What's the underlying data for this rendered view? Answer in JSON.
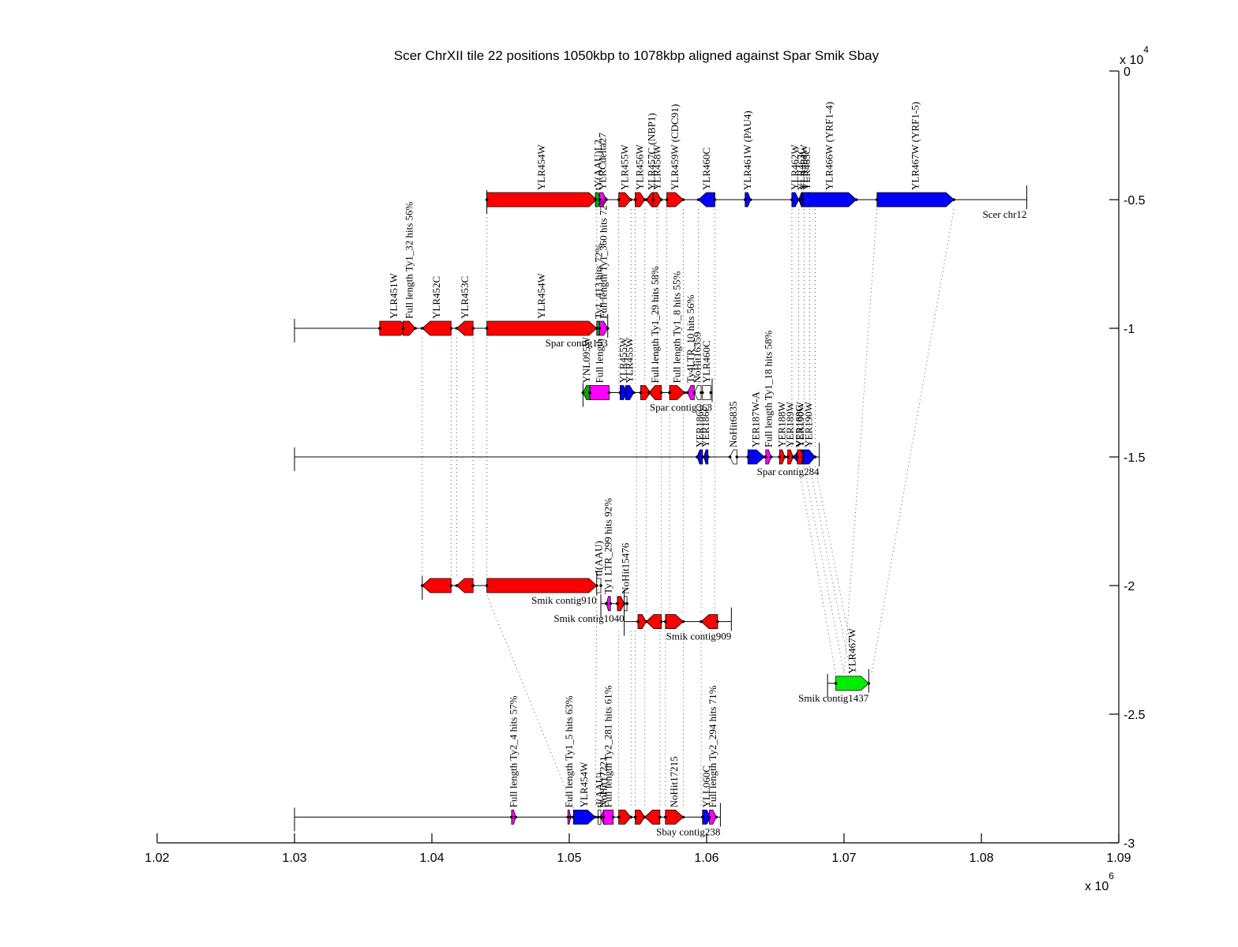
{
  "chart_data": {
    "type": "genome-alignment",
    "title": "Scer ChrXII tile 22 positions 1050kbp to 1078kbp aligned against Spar Smik Sbay",
    "xlabel": "",
    "ylabel": "",
    "xlim": [
      1020000,
      1090000
    ],
    "ylim": [
      -30000,
      0
    ],
    "x_ticks": [
      "1.02",
      "1.03",
      "1.04",
      "1.05",
      "1.06",
      "1.07",
      "1.08",
      "1.09"
    ],
    "x_tick_values": [
      1020000,
      1030000,
      1040000,
      1050000,
      1060000,
      1070000,
      1080000,
      1090000
    ],
    "x_exponent": "x 10",
    "x_exponent_power": "6",
    "y_ticks": [
      "0",
      "-0.5",
      "-1",
      "-1.5",
      "-2",
      "-2.5",
      "-3"
    ],
    "y_tick_values": [
      0,
      -5000,
      -10000,
      -15000,
      -20000,
      -25000,
      -30000
    ],
    "y_exponent": "x 10",
    "y_exponent_power": "4",
    "y_axis_side": "right",
    "colors": {
      "watson": "#ff0000",
      "crick": "#0000ff",
      "ty": "#ff00ff",
      "trna": "#00aa00",
      "green": "#00ee00",
      "nohit": "#ffffff"
    },
    "tracks": [
      {
        "name": "Scer chr12",
        "y": -5000,
        "start": 1044000,
        "end": 1083300,
        "features": [
          {
            "label": "YLR454W",
            "start": 1044000,
            "end": 1052000,
            "dir": "right",
            "color": "#ff0000"
          },
          {
            "label": "tY(AAU)L2",
            "start": 1051900,
            "end": 1052300,
            "dir": "right",
            "color": "#00aa00"
          },
          {
            "label": "YLRCdelta27",
            "start": 1052200,
            "end": 1052700,
            "dir": "right",
            "color": "#ff00ff"
          },
          {
            "label": "YLR455W",
            "start": 1053600,
            "end": 1054500,
            "dir": "right",
            "color": "#ff0000"
          },
          {
            "label": "YLR456W",
            "start": 1054800,
            "end": 1055500,
            "dir": "right",
            "color": "#ff0000"
          },
          {
            "label": "YLR457C (NBP1)",
            "start": 1055600,
            "end": 1056400,
            "dir": "left",
            "color": "#ff0000"
          },
          {
            "label": "YLR458W",
            "start": 1056100,
            "end": 1056700,
            "dir": "right",
            "color": "#ff0000"
          },
          {
            "label": "YLR459W (CDC91)",
            "start": 1057100,
            "end": 1058300,
            "dir": "right",
            "color": "#ff0000"
          },
          {
            "label": "YLR460C",
            "start": 1059400,
            "end": 1060600,
            "dir": "left",
            "color": "#0000ff"
          },
          {
            "label": "YLR461W (PAU4)",
            "start": 1062800,
            "end": 1063200,
            "dir": "right",
            "color": "#0000ff"
          },
          {
            "label": "YLR462W",
            "start": 1066200,
            "end": 1066700,
            "dir": "right",
            "color": "#0000ff"
          },
          {
            "label": "YLR463C",
            "start": 1066700,
            "end": 1067100,
            "dir": "left",
            "color": "#0000ff"
          },
          {
            "label": "YLR464W",
            "start": 1066900,
            "end": 1067300,
            "dir": "right",
            "color": "#0000ff"
          },
          {
            "label": "YLR465C",
            "start": 1067100,
            "end": 1067500,
            "dir": "left",
            "color": "#0000ff"
          },
          {
            "label": "YLR466W (YRF1-4)",
            "start": 1067000,
            "end": 1070900,
            "dir": "right",
            "color": "#0000ff"
          },
          {
            "label": "YLR467W (YRF1-5)",
            "start": 1072400,
            "end": 1078000,
            "dir": "right",
            "color": "#0000ff"
          }
        ]
      },
      {
        "name": "Spar contig153",
        "y": -10000,
        "start": 1030000,
        "end": 1052800,
        "features": [
          {
            "label": "YLR451W",
            "start": 1036200,
            "end": 1038300,
            "dir": "right",
            "color": "#ff0000"
          },
          {
            "label": "Full length Ty1_32 hits 56%",
            "start": 1037900,
            "end": 1038800,
            "dir": "right",
            "color": "#ff0000"
          },
          {
            "label": "YLR452C",
            "start": 1039300,
            "end": 1041400,
            "dir": "left",
            "color": "#ff0000"
          },
          {
            "label": "YLR453C",
            "start": 1041800,
            "end": 1043000,
            "dir": "left",
            "color": "#ff0000"
          },
          {
            "label": "YLR454W",
            "start": 1044000,
            "end": 1052000,
            "dir": "right",
            "color": "#ff0000"
          },
          {
            "label": "Ty1_413 hits 72%",
            "start": 1052000,
            "end": 1052300,
            "dir": "right",
            "color": "#00aa00"
          },
          {
            "label": "Full length Ty1_360 hits 72%",
            "start": 1052200,
            "end": 1052800,
            "dir": "right",
            "color": "#ff00ff"
          }
        ]
      },
      {
        "name": "Spar contig363",
        "y": -12500,
        "start": 1051000,
        "end": 1060400,
        "features": [
          {
            "label": "YNL095W",
            "start": 1051000,
            "end": 1051500,
            "dir": "left",
            "color": "#00aa00"
          },
          {
            "label": "Full length",
            "start": 1051500,
            "end": 1052900,
            "dir": "none",
            "color": "#ff00ff"
          },
          {
            "label": "YLR455W",
            "start": 1053700,
            "end": 1054200,
            "dir": "right",
            "color": "#0000ff"
          },
          {
            "label": "YLR455W",
            "start": 1054100,
            "end": 1054700,
            "dir": "right",
            "color": "#0000ff"
          },
          {
            "label": "",
            "start": 1055200,
            "end": 1055900,
            "dir": "right",
            "color": "#ff0000"
          },
          {
            "label": "Full length Ty1_29 hits 58%",
            "start": 1055800,
            "end": 1056700,
            "dir": "left",
            "color": "#ff0000"
          },
          {
            "label": "Full length Ty1_8 hits 55%",
            "start": 1057300,
            "end": 1058400,
            "dir": "right",
            "color": "#ff0000"
          },
          {
            "label": "Ty4LTR_10 hits 56%",
            "start": 1058600,
            "end": 1059100,
            "dir": "left",
            "color": "#ff00ff"
          },
          {
            "label": "NoHit16359",
            "start": 1059100,
            "end": 1059600,
            "dir": "left",
            "color": "#ffffff"
          },
          {
            "label": "YLR460C",
            "start": 1059700,
            "end": 1060300,
            "dir": "none",
            "color": "#ffffff"
          }
        ]
      },
      {
        "name": "Spar contig284",
        "y": -15000,
        "start": 1030000,
        "end": 1068200,
        "features": [
          {
            "label": "YER186C",
            "start": 1059300,
            "end": 1059700,
            "dir": "left",
            "color": "#0000ff"
          },
          {
            "label": "YER186C",
            "start": 1059800,
            "end": 1060100,
            "dir": "left",
            "color": "#0000ff"
          },
          {
            "label": "NoHit6835",
            "start": 1061700,
            "end": 1062200,
            "dir": "left",
            "color": "#ffffff"
          },
          {
            "label": "YER187W-A",
            "start": 1063000,
            "end": 1064200,
            "dir": "right",
            "color": "#0000ff"
          },
          {
            "label": "Full length Ty1_18 hits 58%",
            "start": 1064300,
            "end": 1064700,
            "dir": "right",
            "color": "#ff00ff"
          },
          {
            "label": "YER188W",
            "start": 1065300,
            "end": 1065700,
            "dir": "right",
            "color": "#ff0000"
          },
          {
            "label": "YER189W",
            "start": 1065900,
            "end": 1066300,
            "dir": "right",
            "color": "#ff0000"
          },
          {
            "label": "YER188C",
            "start": 1066300,
            "end": 1067200,
            "dir": "left",
            "color": "#0000ff"
          },
          {
            "label": "YER190W",
            "start": 1066600,
            "end": 1067100,
            "dir": "right",
            "color": "#ff0000"
          },
          {
            "label": "YER190W",
            "start": 1067000,
            "end": 1067900,
            "dir": "right",
            "color": "#0000ff"
          }
        ]
      },
      {
        "name": "Smik contig910",
        "y": -20000,
        "start": 1039300,
        "end": 1052000,
        "features": [
          {
            "label": "",
            "start": 1039300,
            "end": 1041400,
            "dir": "left",
            "color": "#ff0000"
          },
          {
            "label": "",
            "start": 1041800,
            "end": 1043000,
            "dir": "left",
            "color": "#ff0000"
          },
          {
            "label": "",
            "start": 1044000,
            "end": 1052000,
            "dir": "right",
            "color": "#ff0000"
          },
          {
            "label": "tI(AAU)",
            "start": 1052000,
            "end": 1052300,
            "dir": "none",
            "color": "#ffffff"
          }
        ]
      },
      {
        "name": "Smik contig1040",
        "y": -20700,
        "start": 1052300,
        "end": 1054000,
        "features": [
          {
            "label": "Ty1 LTR_299 hits 92%",
            "start": 1052700,
            "end": 1053000,
            "dir": "left",
            "color": "#ff00ff"
          },
          {
            "label": "",
            "start": 1053500,
            "end": 1054000,
            "dir": "right",
            "color": "#ff0000"
          },
          {
            "label": "NoHit15476",
            "start": 1054000,
            "end": 1054200,
            "dir": "none",
            "color": "#ffffff"
          }
        ]
      },
      {
        "name": "Smik contig909",
        "y": -21400,
        "start": 1054000,
        "end": 1061800,
        "features": [
          {
            "label": "",
            "start": 1055000,
            "end": 1055600,
            "dir": "right",
            "color": "#ff0000"
          },
          {
            "label": "",
            "start": 1055600,
            "end": 1056700,
            "dir": "left",
            "color": "#ff0000"
          },
          {
            "label": "",
            "start": 1057000,
            "end": 1058300,
            "dir": "right",
            "color": "#ff0000"
          },
          {
            "label": "",
            "start": 1059600,
            "end": 1060800,
            "dir": "left",
            "color": "#ff0000"
          }
        ]
      },
      {
        "name": "Smik contig1437",
        "y": -23800,
        "start": 1068800,
        "end": 1071800,
        "features": [
          {
            "label": "YLR467W",
            "start": 1069400,
            "end": 1071800,
            "dir": "right",
            "color": "#00ee00"
          }
        ]
      },
      {
        "name": "Sbay contig238",
        "y": -29000,
        "start": 1030000,
        "end": 1061000,
        "features": [
          {
            "label": "Full length Ty2_4 hits 57%",
            "start": 1045800,
            "end": 1046100,
            "dir": "right",
            "color": "#ff00ff"
          },
          {
            "label": "Full length Ty1_5 hits 63%",
            "start": 1049900,
            "end": 1050100,
            "dir": "right",
            "color": "#ff00ff"
          },
          {
            "label": "YLR454W",
            "start": 1050300,
            "end": 1051900,
            "dir": "right",
            "color": "#0000ff"
          },
          {
            "label": "tI(AAU)",
            "start": 1052100,
            "end": 1052300,
            "dir": "none",
            "color": "#ffffff"
          },
          {
            "label": "NoHit17221",
            "start": 1052300,
            "end": 1052700,
            "dir": "left",
            "color": "#ff00ff"
          },
          {
            "label": "Full length Ty2_281 hits 61%",
            "start": 1052500,
            "end": 1053200,
            "dir": "none",
            "color": "#ff00ff"
          },
          {
            "label": "",
            "start": 1053600,
            "end": 1054500,
            "dir": "right",
            "color": "#ff0000"
          },
          {
            "label": "",
            "start": 1054800,
            "end": 1055500,
            "dir": "right",
            "color": "#ff0000"
          },
          {
            "label": "",
            "start": 1055500,
            "end": 1056600,
            "dir": "left",
            "color": "#ff0000"
          },
          {
            "label": "NoHit17215",
            "start": 1057000,
            "end": 1058300,
            "dir": "right",
            "color": "#ff0000"
          },
          {
            "label": "YLL060C",
            "start": 1059700,
            "end": 1060300,
            "dir": "right",
            "color": "#0000ff"
          },
          {
            "label": "Full length Ty2_294 hits 71%",
            "start": 1060200,
            "end": 1060700,
            "dir": "right",
            "color": "#ff00ff"
          }
        ]
      }
    ],
    "alignment_links": [
      [
        -5000,
        -10000,
        1044000,
        1044000
      ],
      [
        -5000,
        -10000,
        1052000,
        1052000
      ],
      [
        -10000,
        -20000,
        1039300,
        1039300
      ],
      [
        -10000,
        -20000,
        1041400,
        1041400
      ],
      [
        -10000,
        -20000,
        1041800,
        1041800
      ],
      [
        -10000,
        -20000,
        1043000,
        1043000
      ],
      [
        -10000,
        -20000,
        1044000,
        1044000
      ],
      [
        -5000,
        -12500,
        1053600,
        1053600
      ],
      [
        -5000,
        -12500,
        1054500,
        1054500
      ],
      [
        -5000,
        -12500,
        1054800,
        1054800
      ],
      [
        -5000,
        -12500,
        1055500,
        1055500
      ],
      [
        -5000,
        -12500,
        1056400,
        1056400
      ],
      [
        -5000,
        -12500,
        1057100,
        1057100
      ],
      [
        -5000,
        -12500,
        1058300,
        1058300
      ],
      [
        -5000,
        -12500,
        1059400,
        1059400
      ],
      [
        -5000,
        -12500,
        1060600,
        1060600
      ],
      [
        -5000,
        -15000,
        1066200,
        1066200
      ],
      [
        -5000,
        -15000,
        1066700,
        1066700
      ],
      [
        -5000,
        -15000,
        1067100,
        1067100
      ],
      [
        -5000,
        -15000,
        1067500,
        1067500
      ],
      [
        -5000,
        -15000,
        1067900,
        1067900
      ],
      [
        -15000,
        -23800,
        1066700,
        1069400
      ],
      [
        -15000,
        -23800,
        1067100,
        1070000
      ],
      [
        -15000,
        -23800,
        1067500,
        1070500
      ],
      [
        -15000,
        -23800,
        1067900,
        1070900
      ],
      [
        -5000,
        -23800,
        1072400,
        1070000
      ],
      [
        -5000,
        -23800,
        1078000,
        1072000
      ],
      [
        -12500,
        -21400,
        1054900,
        1054900
      ],
      [
        -12500,
        -21400,
        1055600,
        1055600
      ],
      [
        -12500,
        -21400,
        1056700,
        1056700
      ],
      [
        -12500,
        -21400,
        1057300,
        1057300
      ],
      [
        -12500,
        -21400,
        1058300,
        1058300
      ],
      [
        -12500,
        -21400,
        1059600,
        1059600
      ],
      [
        -12500,
        -21400,
        1060600,
        1060600
      ],
      [
        -20000,
        -29000,
        1044000,
        1050300
      ],
      [
        -20000,
        -29000,
        1052000,
        1051900
      ],
      [
        -21400,
        -29000,
        1053600,
        1053600
      ],
      [
        -21400,
        -29000,
        1054500,
        1054500
      ],
      [
        -21400,
        -29000,
        1054800,
        1054800
      ],
      [
        -21400,
        -29000,
        1055500,
        1055500
      ],
      [
        -21400,
        -29000,
        1056600,
        1056600
      ],
      [
        -21400,
        -29000,
        1057000,
        1057000
      ],
      [
        -21400,
        -29000,
        1058300,
        1058300
      ],
      [
        -21400,
        -29000,
        1059600,
        1059600
      ]
    ]
  }
}
